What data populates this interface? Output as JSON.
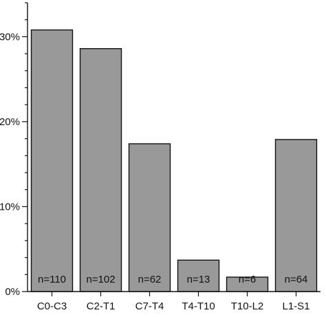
{
  "chart_data": {
    "type": "bar",
    "title": "",
    "xlabel": "",
    "ylabel": "",
    "categories": [
      "C0-C3",
      "C2-T1",
      "C7-T4",
      "T4-T10",
      "T10-L2",
      "L1-S1"
    ],
    "values": [
      30.8,
      28.6,
      17.4,
      3.7,
      1.7,
      17.9
    ],
    "bar_labels": [
      "n=110",
      "n=102",
      "n=62",
      "n=13",
      "n=6",
      "n=64"
    ],
    "ylim": [
      0,
      34
    ],
    "yticks": [
      0,
      10,
      20,
      30
    ],
    "ytick_labels": [
      "0%",
      "10%",
      "20%",
      "30%"
    ],
    "minor_tick_step": 2,
    "grid": false,
    "bar_color": "#999999"
  }
}
